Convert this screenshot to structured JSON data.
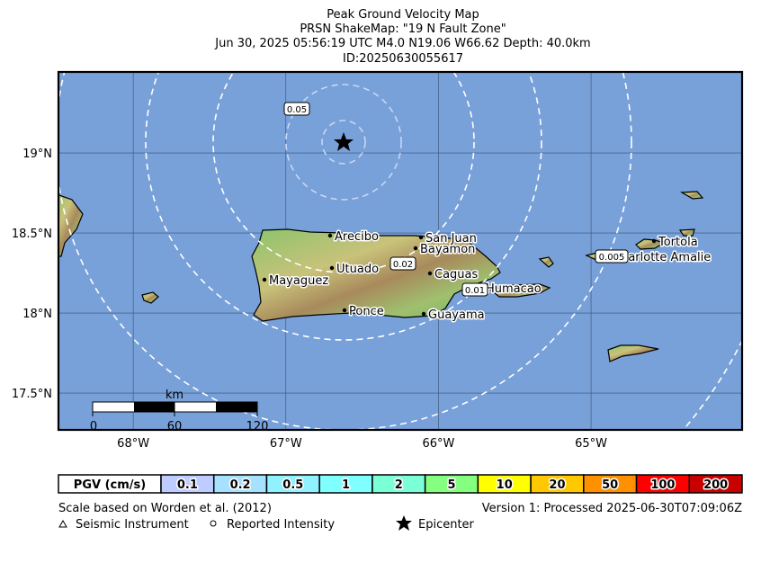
{
  "header": {
    "title": "Peak Ground Velocity Map",
    "subtitle": "PRSN ShakeMap: \"19 N Fault Zone\"",
    "event": "Jun 30, 2025 05:56:19 UTC M4.0 N19.06 W66.62 Depth: 40.0km",
    "event_id": "ID:20250630055617"
  },
  "map": {
    "lon_range": [
      -68.49,
      -64.01
    ],
    "lat_range": [
      17.27,
      19.506
    ],
    "lon_ticks": [
      {
        "value": -68,
        "label": "68°W"
      },
      {
        "value": -67,
        "label": "67°W"
      },
      {
        "value": -66,
        "label": "66°W"
      },
      {
        "value": -65,
        "label": "65°W"
      }
    ],
    "lat_ticks": [
      {
        "value": 19,
        "label": "19°N"
      },
      {
        "value": 18.5,
        "label": "18.5°N"
      },
      {
        "value": 18,
        "label": "18°N"
      },
      {
        "value": 17.5,
        "label": "17.5°N"
      }
    ],
    "cities": [
      "Arecibo",
      "San Juan",
      "Bayamon",
      "Utuado",
      "Caguas",
      "Mayaguez",
      "Humacao",
      "Ponce",
      "Guayama",
      "Charlotte Amalie",
      "Tortola"
    ],
    "contour_labels": [
      "0.05",
      "0.02",
      "0.01",
      "0.005"
    ],
    "scale_bar": {
      "unit": "km",
      "labels": [
        "0",
        "60",
        "120"
      ]
    }
  },
  "legend": {
    "title": "PGV (cm/s)",
    "bins": [
      {
        "label": "0.1",
        "color": "#bfccff"
      },
      {
        "label": "0.2",
        "color": "#a6e2ff"
      },
      {
        "label": "0.5",
        "color": "#90f2ff"
      },
      {
        "label": "1",
        "color": "#80ffff"
      },
      {
        "label": "2",
        "color": "#7affd6"
      },
      {
        "label": "5",
        "color": "#85ff80"
      },
      {
        "label": "10",
        "color": "#ffff00"
      },
      {
        "label": "20",
        "color": "#ffc800"
      },
      {
        "label": "50",
        "color": "#ff9100"
      },
      {
        "label": "100",
        "color": "#ff0000"
      },
      {
        "label": "200",
        "color": "#c80000"
      }
    ]
  },
  "footer": {
    "scale_note": "Scale based on Worden et al. (2012)",
    "version": "Version 1: Processed 2025-06-30T07:09:06Z",
    "instrument": "Seismic Instrument",
    "intensity": "Reported Intensity",
    "epicenter": "Epicenter"
  }
}
